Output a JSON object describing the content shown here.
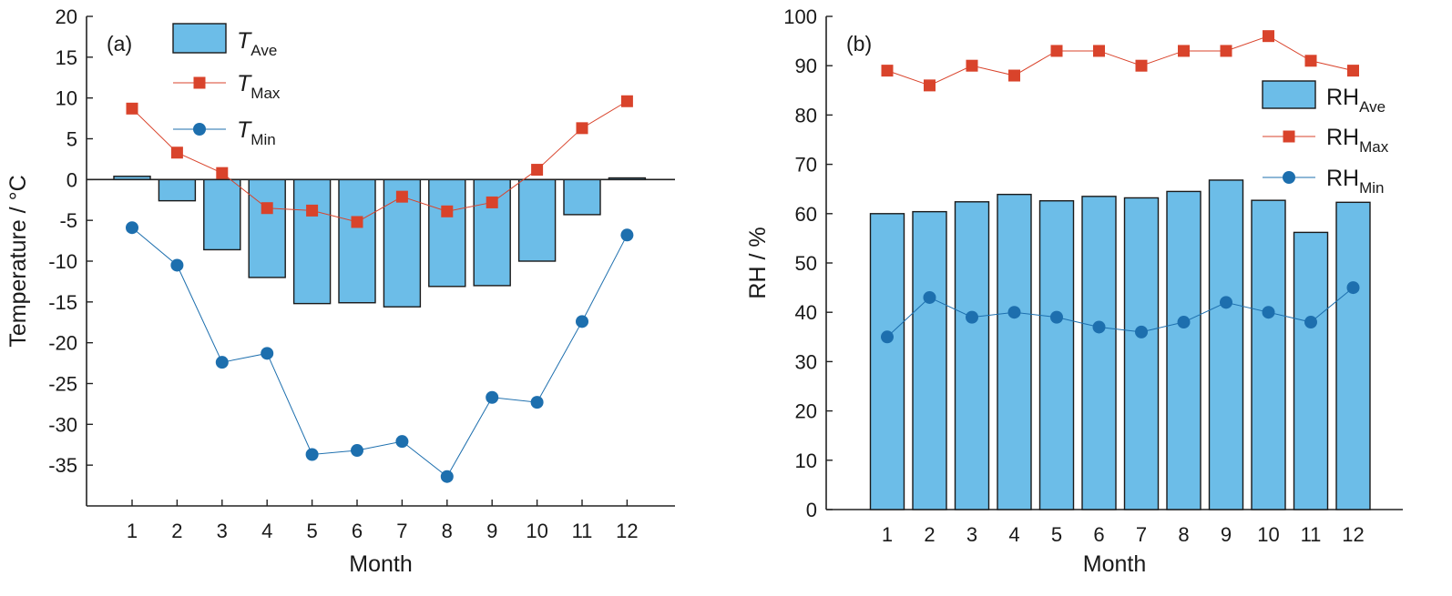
{
  "chart_data": [
    {
      "type": "bar",
      "panel_label": "(a)",
      "xlabel": "Month",
      "ylabel": "Temperature / °C",
      "ylim": [
        -40,
        20
      ],
      "yticks": [
        -35,
        -30,
        -25,
        -20,
        -15,
        -10,
        -5,
        0,
        5,
        10,
        15,
        20
      ],
      "categories": [
        "1",
        "2",
        "3",
        "4",
        "5",
        "6",
        "7",
        "8",
        "9",
        "10",
        "11",
        "12"
      ],
      "grid": false,
      "legend_position": "top-left",
      "series": [
        {
          "key": "ave",
          "type": "bar",
          "color": "#6cbde8",
          "name_main": "T",
          "name_sub": "Ave",
          "name_italic": true,
          "values": [
            0.4,
            -2.6,
            -8.6,
            -12.0,
            -15.2,
            -15.1,
            -15.6,
            -13.1,
            -13.0,
            -10.0,
            -4.3,
            0.2
          ]
        },
        {
          "key": "max",
          "type": "line",
          "marker": "square",
          "color": "#d9432b",
          "name_main": "T",
          "name_sub": "Max",
          "name_italic": true,
          "values": [
            8.7,
            3.3,
            0.8,
            -3.5,
            -3.8,
            -5.2,
            -2.1,
            -3.9,
            -2.8,
            1.2,
            6.3,
            9.6
          ]
        },
        {
          "key": "min",
          "type": "line",
          "marker": "circle",
          "color": "#1d6fae",
          "name_main": "T",
          "name_sub": "Min",
          "name_italic": true,
          "values": [
            -5.9,
            -10.5,
            -22.4,
            -21.3,
            -33.7,
            -33.2,
            -32.1,
            -36.4,
            -26.7,
            -27.3,
            -17.4,
            -6.8
          ]
        }
      ]
    },
    {
      "type": "bar",
      "panel_label": "(b)",
      "xlabel": "Month",
      "ylabel": "RH / %",
      "ylim": [
        0,
        100
      ],
      "yticks": [
        0,
        10,
        20,
        30,
        40,
        50,
        60,
        70,
        80,
        90,
        100
      ],
      "categories": [
        "1",
        "2",
        "3",
        "4",
        "5",
        "6",
        "7",
        "8",
        "9",
        "10",
        "11",
        "12"
      ],
      "grid": false,
      "legend_position": "right",
      "series": [
        {
          "key": "ave",
          "type": "bar",
          "color": "#6cbde8",
          "name_main": "RH",
          "name_sub": "Ave",
          "name_italic": false,
          "values": [
            60.0,
            60.4,
            62.4,
            63.9,
            62.6,
            63.5,
            63.2,
            64.5,
            66.8,
            62.7,
            56.2,
            62.3
          ]
        },
        {
          "key": "max",
          "type": "line",
          "marker": "square",
          "color": "#d9432b",
          "name_main": "RH",
          "name_sub": "Max",
          "name_italic": false,
          "values": [
            89,
            86,
            90,
            88,
            93,
            93,
            90,
            93,
            93,
            96,
            91,
            89
          ]
        },
        {
          "key": "min",
          "type": "line",
          "marker": "circle",
          "color": "#1d6fae",
          "name_main": "RH",
          "name_sub": "Min",
          "name_italic": false,
          "values": [
            35,
            43,
            39,
            40,
            39,
            37,
            36,
            38,
            42,
            40,
            38,
            45
          ]
        }
      ]
    }
  ]
}
